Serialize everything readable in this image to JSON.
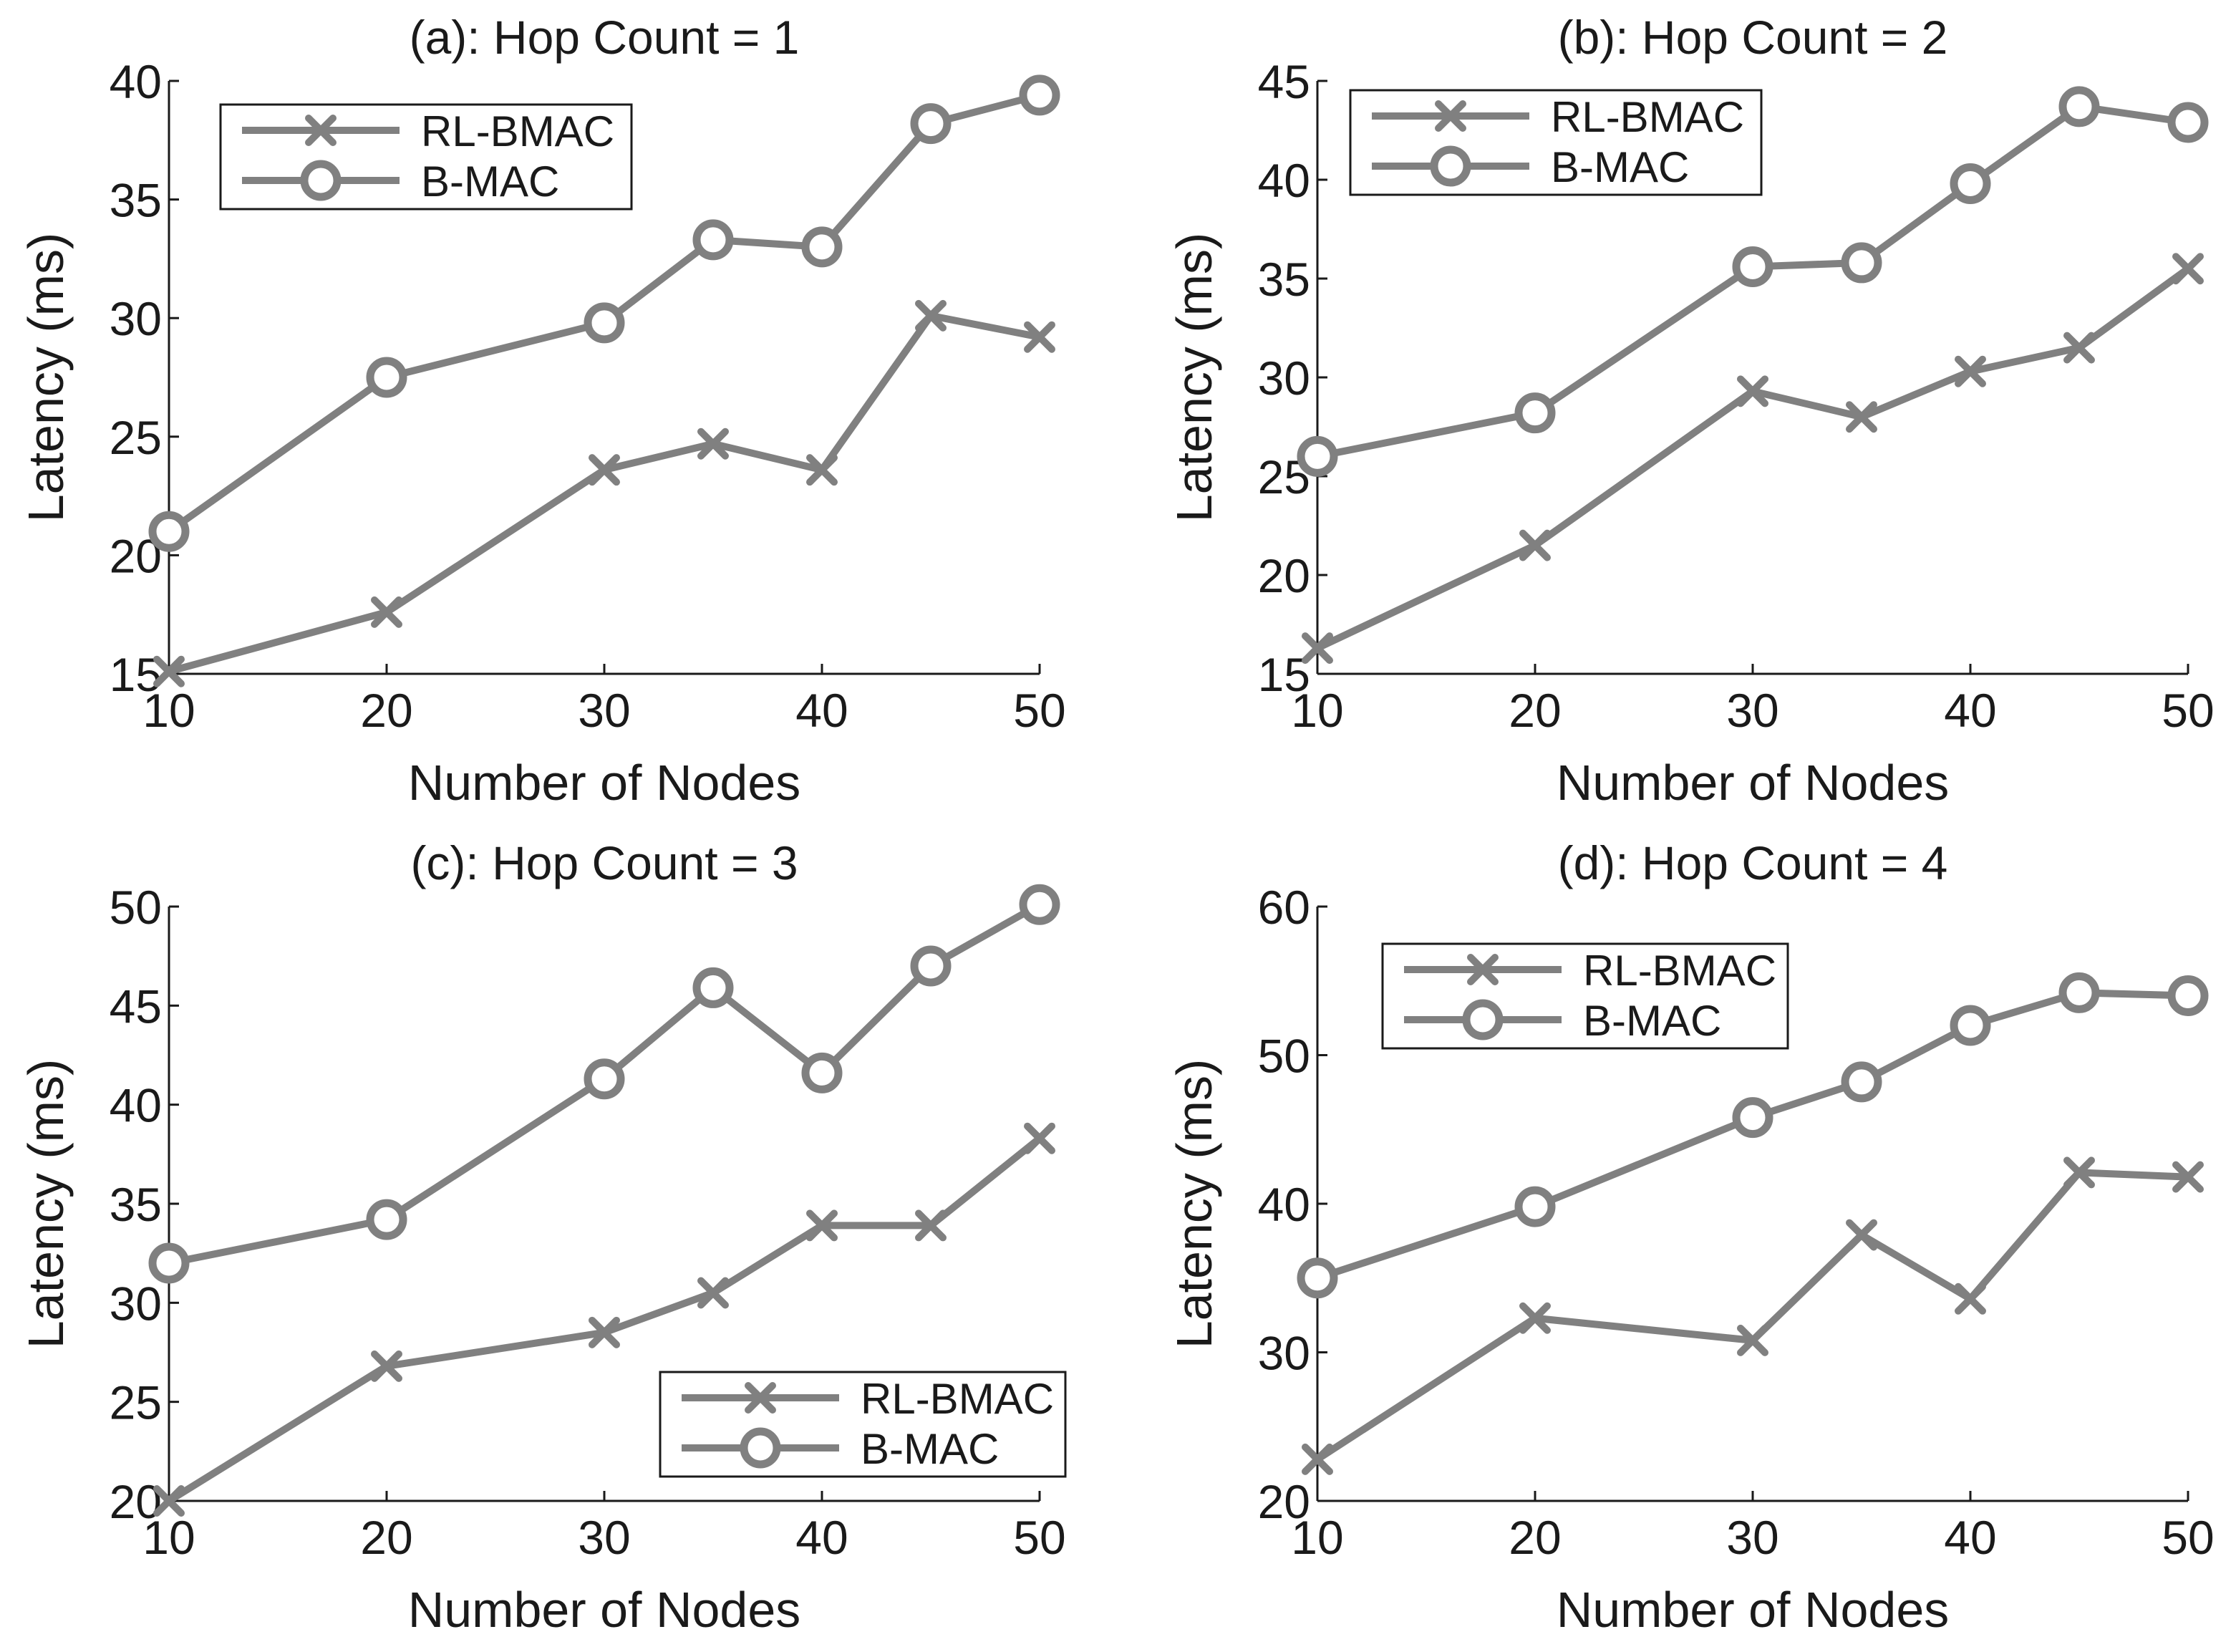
{
  "figure": {
    "series_color": "#808080",
    "axis_color": "#1a1a1a"
  },
  "chart_data": [
    {
      "type": "line",
      "title": "(a): Hop Count = 1",
      "xlabel": "Number of Nodes",
      "ylabel": "Latency (ms)",
      "x": [
        10,
        20,
        30,
        35,
        40,
        45,
        50
      ],
      "xlim": [
        10,
        50
      ],
      "ylim": [
        15,
        40
      ],
      "xticks": [
        10,
        20,
        30,
        40,
        50
      ],
      "yticks": [
        15,
        20,
        25,
        30,
        35,
        40
      ],
      "legend_position": "top-left",
      "series": [
        {
          "name": "RL-BMAC",
          "marker": "x",
          "values": [
            15.1,
            17.6,
            23.6,
            24.7,
            23.6,
            30.1,
            29.2
          ]
        },
        {
          "name": "B-MAC",
          "marker": "o",
          "values": [
            21.0,
            27.5,
            29.8,
            33.3,
            33.0,
            38.2,
            39.4
          ]
        }
      ]
    },
    {
      "type": "line",
      "title": "(b): Hop Count = 2",
      "xlabel": "Number of Nodes",
      "ylabel": "Latency (ms)",
      "x": [
        10,
        20,
        30,
        35,
        40,
        45,
        50
      ],
      "xlim": [
        10,
        50
      ],
      "ylim": [
        15,
        45
      ],
      "xticks": [
        10,
        20,
        30,
        40,
        50
      ],
      "yticks": [
        15,
        20,
        25,
        30,
        35,
        40,
        45
      ],
      "legend_position": "top-left",
      "series": [
        {
          "name": "RL-BMAC",
          "marker": "x",
          "values": [
            16.3,
            21.5,
            29.3,
            28.0,
            30.3,
            31.5,
            35.5
          ]
        },
        {
          "name": "B-MAC",
          "marker": "o",
          "values": [
            26.0,
            28.2,
            35.6,
            35.8,
            39.8,
            43.7,
            42.9
          ]
        }
      ]
    },
    {
      "type": "line",
      "title": "(c): Hop Count = 3",
      "xlabel": "Number of Nodes",
      "ylabel": "Latency (ms)",
      "x": [
        10,
        20,
        30,
        35,
        40,
        45,
        50
      ],
      "xlim": [
        10,
        50
      ],
      "ylim": [
        20,
        50
      ],
      "xticks": [
        10,
        20,
        30,
        40,
        50
      ],
      "yticks": [
        20,
        25,
        30,
        35,
        40,
        45,
        50
      ],
      "legend_position": "bottom-right",
      "series": [
        {
          "name": "RL-BMAC",
          "marker": "x",
          "values": [
            20.0,
            26.8,
            28.5,
            30.5,
            33.9,
            33.9,
            38.3
          ]
        },
        {
          "name": "B-MAC",
          "marker": "o",
          "values": [
            32.0,
            34.2,
            41.3,
            45.9,
            41.6,
            47.0,
            50.1
          ]
        }
      ]
    },
    {
      "type": "line",
      "title": "(d): Hop Count = 4",
      "xlabel": "Number of Nodes",
      "ylabel": "Latency (ms)",
      "x": [
        10,
        20,
        30,
        35,
        40,
        45,
        50
      ],
      "xlim": [
        10,
        50
      ],
      "ylim": [
        20,
        60
      ],
      "xticks": [
        10,
        20,
        30,
        40,
        50
      ],
      "yticks": [
        20,
        30,
        40,
        50,
        60
      ],
      "legend_position": "top-left",
      "series": [
        {
          "name": "RL-BMAC",
          "marker": "x",
          "values": [
            22.8,
            32.3,
            30.8,
            37.9,
            33.6,
            42.1,
            41.8
          ]
        },
        {
          "name": "B-MAC",
          "marker": "o",
          "values": [
            35.0,
            39.8,
            45.8,
            48.2,
            52.0,
            54.2,
            54.0
          ]
        }
      ]
    }
  ]
}
